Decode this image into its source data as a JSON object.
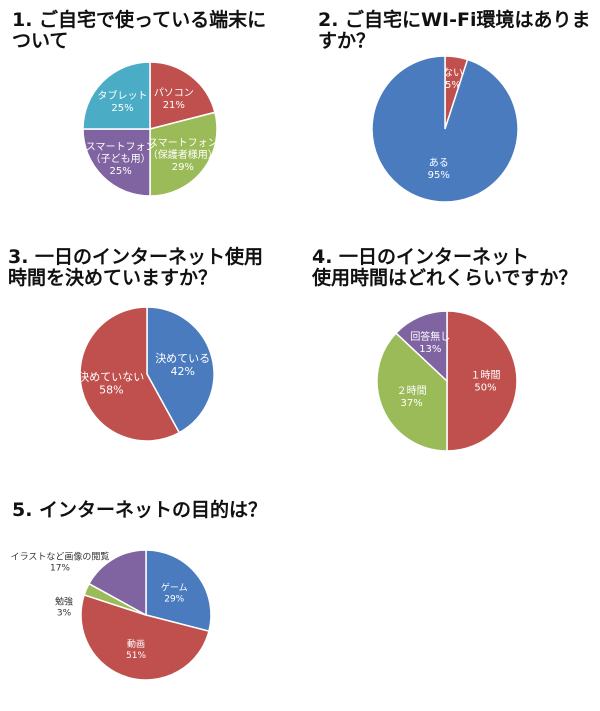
{
  "colors": {
    "blue": "#4a7bbf",
    "red": "#c0504d",
    "green": "#9bbb59",
    "purple": "#8064a2",
    "teal": "#4bacc6"
  },
  "questions": [
    {
      "title": "1. ご自宅で使っている端末に\nついて"
    },
    {
      "title": "2. ご自宅にWI-Fi環境はありま\nすか？"
    },
    {
      "title": "3. 一日のインターネット使用\n時間を決めていますか？"
    },
    {
      "title": "4. 一日のインターネット\n使用時間はどれくらいですか？"
    },
    {
      "title": "5. インターネットの目的は？"
    }
  ],
  "chart_data": [
    {
      "type": "pie",
      "slices": [
        {
          "label": "パソコン",
          "value": 21,
          "pct": "21%",
          "color": "red"
        },
        {
          "label": "スマートフォン\n（保護者様用）",
          "value": 29,
          "pct": "29%",
          "color": "green"
        },
        {
          "label": "スマートフォン\n（子ども用）",
          "value": 25,
          "pct": "25%",
          "color": "purple"
        },
        {
          "label": "タブレット",
          "value": 25,
          "pct": "25%",
          "color": "teal"
        }
      ]
    },
    {
      "type": "pie",
      "slices": [
        {
          "label": "ない",
          "value": 5,
          "pct": "5%",
          "color": "red"
        },
        {
          "label": "ある",
          "value": 95,
          "pct": "95%",
          "color": "blue"
        }
      ]
    },
    {
      "type": "pie",
      "slices": [
        {
          "label": "決めている",
          "value": 42,
          "pct": "42%",
          "color": "blue"
        },
        {
          "label": "決めていない",
          "value": 58,
          "pct": "58%",
          "color": "red"
        }
      ]
    },
    {
      "type": "pie",
      "slices": [
        {
          "label": "１時間",
          "value": 50,
          "pct": "50%",
          "color": "red"
        },
        {
          "label": "２時間",
          "value": 37,
          "pct": "37%",
          "color": "green"
        },
        {
          "label": "回答無し",
          "value": 13,
          "pct": "13%",
          "color": "purple"
        }
      ]
    },
    {
      "type": "pie",
      "slices": [
        {
          "label": "ゲーム",
          "value": 29,
          "pct": "29%",
          "color": "blue"
        },
        {
          "label": "動画",
          "value": 51,
          "pct": "51%",
          "color": "red"
        },
        {
          "label": "勉強",
          "value": 3,
          "pct": "3%",
          "color": "green"
        },
        {
          "label": "イラストなど画像の閲覧",
          "value": 17,
          "pct": "17%",
          "color": "purple"
        }
      ]
    }
  ]
}
